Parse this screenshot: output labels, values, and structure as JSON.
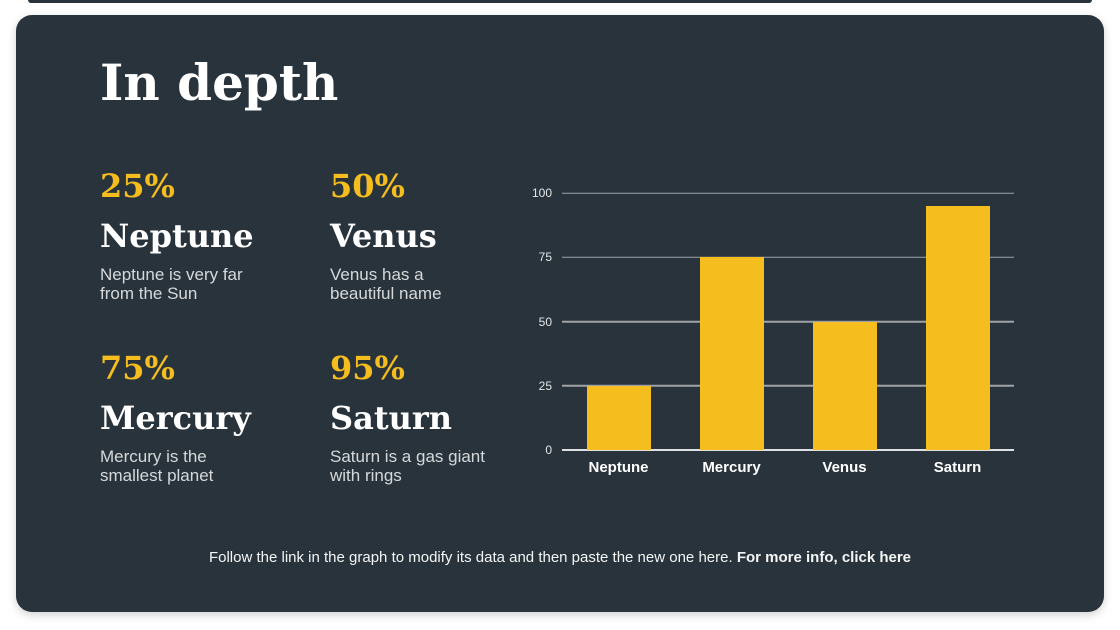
{
  "slide": {
    "title": "In depth"
  },
  "stats": [
    {
      "percent": "25%",
      "name": "Neptune",
      "description": "Neptune is very far\nfrom the Sun"
    },
    {
      "percent": "50%",
      "name": "Venus",
      "description": "Venus has a\nbeautiful name"
    },
    {
      "percent": "75%",
      "name": "Mercury",
      "description": "Mercury is the\nsmallest planet"
    },
    {
      "percent": "95%",
      "name": "Saturn",
      "description": "Saturn is a gas giant\nwith rings"
    }
  ],
  "chart_data": {
    "type": "bar",
    "categories": [
      "Neptune",
      "Mercury",
      "Venus",
      "Saturn"
    ],
    "values": [
      25,
      75,
      50,
      95
    ],
    "yticks": [
      0,
      25,
      50,
      75,
      100
    ],
    "ylim": [
      0,
      100
    ],
    "title": "",
    "xlabel": "",
    "ylabel": "",
    "grid": true,
    "legend": false,
    "bar_color": "#f5bd1e"
  },
  "footer": {
    "text": "Follow the link in the graph to modify its data and then paste the new one here.",
    "bold_text": "For more info, click here"
  },
  "colors": {
    "accent": "#f5bd1e",
    "card_bg": "#28333c",
    "text": "#ffffff",
    "muted_text": "#d5d9db",
    "gridline": "rgba(255,255,255,0.55)",
    "canvas_bg": "#ffffff"
  }
}
